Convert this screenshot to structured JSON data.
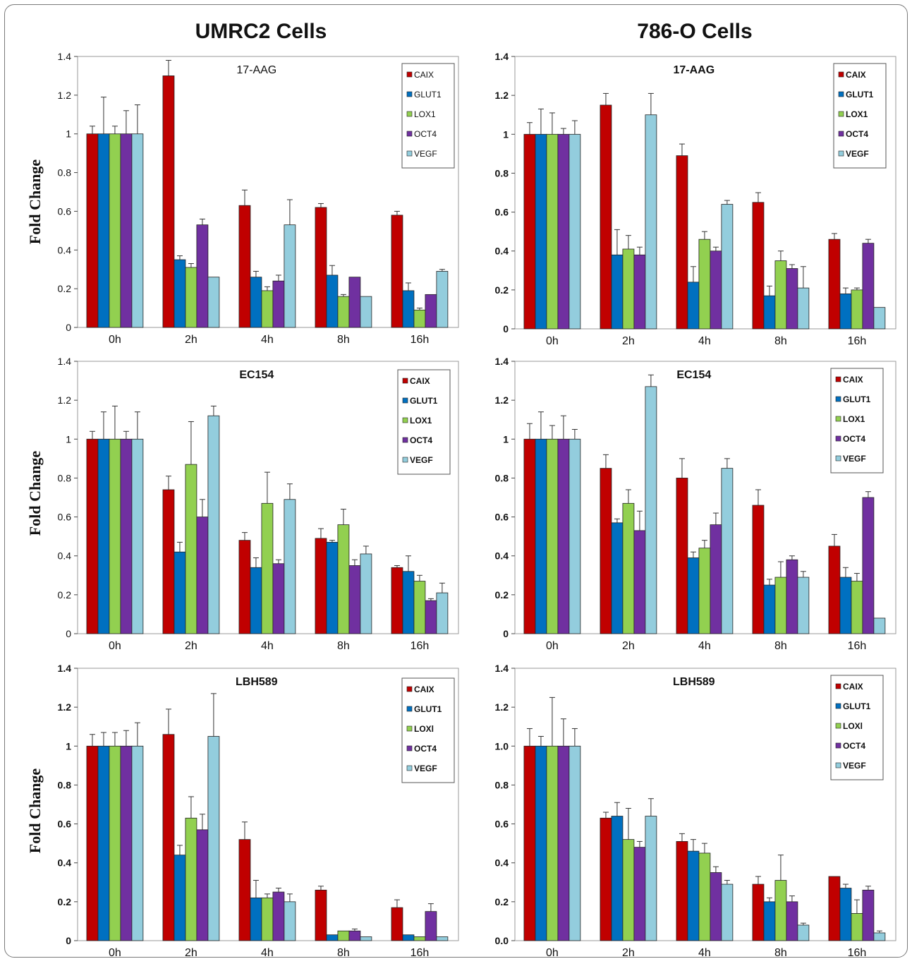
{
  "column_titles": [
    "UMRC2 Cells",
    "786-O Cells"
  ],
  "ylabel": "Fold Change",
  "colors": {
    "CAIX": "#c00000",
    "GLUT1": "#0070c0",
    "LOX1": "#92d050",
    "OCT4": "#7030a0",
    "VEGF": "#93cddd"
  },
  "chart_data": [
    {
      "type": "bar",
      "title": "17-AAG",
      "categories": [
        "0h",
        "2h",
        "4h",
        "8h",
        "16h"
      ],
      "ylim": [
        0,
        1.4
      ],
      "yticks": [
        "0",
        "0.2",
        "0.4",
        "0.6",
        "0.8",
        "1",
        "1.2",
        "1.4"
      ],
      "legend": [
        "CAIX",
        "GLUT1",
        "LOX1",
        "OCT4",
        "VEGF"
      ],
      "legend_position": "top-right",
      "series": [
        {
          "name": "CAIX",
          "values": [
            1.0,
            1.3,
            0.63,
            0.62,
            0.58
          ],
          "errors": [
            0.04,
            0.08,
            0.08,
            0.02,
            0.02
          ]
        },
        {
          "name": "GLUT1",
          "values": [
            1.0,
            0.35,
            0.26,
            0.27,
            0.19
          ],
          "errors": [
            0.19,
            0.02,
            0.03,
            0.05,
            0.04
          ]
        },
        {
          "name": "LOX1",
          "values": [
            1.0,
            0.31,
            0.19,
            0.16,
            0.09
          ],
          "errors": [
            0.04,
            0.02,
            0.02,
            0.01,
            0.01
          ]
        },
        {
          "name": "OCT4",
          "values": [
            1.0,
            0.53,
            0.24,
            0.26,
            0.17
          ],
          "errors": [
            0.12,
            0.03,
            0.03,
            0.0,
            0.0
          ]
        },
        {
          "name": "VEGF",
          "values": [
            1.0,
            0.26,
            0.53,
            0.16,
            0.29
          ],
          "errors": [
            0.15,
            0.0,
            0.13,
            0.0,
            0.01
          ]
        }
      ]
    },
    {
      "type": "bar",
      "title": "17-AAG",
      "categories": [
        "0h",
        "2h",
        "4h",
        "8h",
        "16h"
      ],
      "ylim": [
        0,
        1.4
      ],
      "yticks": [
        "0",
        "0.2",
        "0.4",
        "0.6",
        "0.8",
        "1",
        "1.2",
        "1.4"
      ],
      "legend": [
        "CAIX",
        "GLUT1",
        "LOX1",
        "OCT4",
        "VEGF"
      ],
      "legend_position": "top-right",
      "series": [
        {
          "name": "CAIX",
          "values": [
            1.0,
            1.15,
            0.89,
            0.65,
            0.46
          ],
          "errors": [
            0.06,
            0.06,
            0.06,
            0.05,
            0.03
          ]
        },
        {
          "name": "GLUT1",
          "values": [
            1.0,
            0.38,
            0.24,
            0.17,
            0.18
          ],
          "errors": [
            0.13,
            0.13,
            0.08,
            0.05,
            0.03
          ]
        },
        {
          "name": "LOX1",
          "values": [
            1.0,
            0.41,
            0.46,
            0.35,
            0.2
          ],
          "errors": [
            0.11,
            0.07,
            0.04,
            0.05,
            0.01
          ]
        },
        {
          "name": "OCT4",
          "values": [
            1.0,
            0.38,
            0.4,
            0.31,
            0.44
          ],
          "errors": [
            0.03,
            0.04,
            0.02,
            0.02,
            0.02
          ]
        },
        {
          "name": "VEGF",
          "values": [
            1.0,
            1.1,
            0.64,
            0.21,
            0.11
          ],
          "errors": [
            0.07,
            0.11,
            0.02,
            0.11,
            0.0
          ]
        }
      ]
    },
    {
      "type": "bar",
      "title": "EC154",
      "categories": [
        "0h",
        "2h",
        "4h",
        "8h",
        "16h"
      ],
      "ylim": [
        0,
        1.4
      ],
      "yticks": [
        "0",
        "0.2",
        "0.4",
        "0.6",
        "0.8",
        "1",
        "1.2",
        "1.4"
      ],
      "legend": [
        "CAIX",
        "GLUT1",
        "LOX1",
        "OCT4",
        "VEGF"
      ],
      "legend_position": "top-right",
      "series": [
        {
          "name": "CAIX",
          "values": [
            1.0,
            0.74,
            0.48,
            0.49,
            0.34
          ],
          "errors": [
            0.04,
            0.07,
            0.04,
            0.05,
            0.01
          ]
        },
        {
          "name": "GLUT1",
          "values": [
            1.0,
            0.42,
            0.34,
            0.47,
            0.32
          ],
          "errors": [
            0.14,
            0.05,
            0.05,
            0.01,
            0.08
          ]
        },
        {
          "name": "LOX1",
          "values": [
            1.0,
            0.87,
            0.67,
            0.56,
            0.27
          ],
          "errors": [
            0.17,
            0.22,
            0.16,
            0.08,
            0.03
          ]
        },
        {
          "name": "OCT4",
          "values": [
            1.0,
            0.6,
            0.36,
            0.35,
            0.17
          ],
          "errors": [
            0.04,
            0.09,
            0.02,
            0.03,
            0.01
          ]
        },
        {
          "name": "VEGF",
          "values": [
            1.0,
            1.12,
            0.69,
            0.41,
            0.21
          ],
          "errors": [
            0.14,
            0.05,
            0.08,
            0.04,
            0.05
          ]
        }
      ]
    },
    {
      "type": "bar",
      "title": "EC154",
      "categories": [
        "0h",
        "2h",
        "4h",
        "8h",
        "16h"
      ],
      "ylim": [
        0,
        1.4
      ],
      "yticks": [
        "0",
        "0.2",
        "0.4",
        "0.6",
        "0.8",
        "1",
        "1.2",
        "1.4"
      ],
      "legend": [
        "CAIX",
        "GLUT1",
        "LOX1",
        "OCT4",
        "VEGF"
      ],
      "legend_position": "top-right",
      "series": [
        {
          "name": "CAIX",
          "values": [
            1.0,
            0.85,
            0.8,
            0.66,
            0.45
          ],
          "errors": [
            0.08,
            0.07,
            0.1,
            0.08,
            0.06
          ]
        },
        {
          "name": "GLUT1",
          "values": [
            1.0,
            0.57,
            0.39,
            0.25,
            0.29
          ],
          "errors": [
            0.14,
            0.02,
            0.03,
            0.03,
            0.05
          ]
        },
        {
          "name": "LOX1",
          "values": [
            1.0,
            0.67,
            0.44,
            0.29,
            0.27
          ],
          "errors": [
            0.07,
            0.07,
            0.04,
            0.08,
            0.04
          ]
        },
        {
          "name": "OCT4",
          "values": [
            1.0,
            0.53,
            0.56,
            0.38,
            0.7
          ],
          "errors": [
            0.12,
            0.1,
            0.06,
            0.02,
            0.03
          ]
        },
        {
          "name": "VEGF",
          "values": [
            1.0,
            1.27,
            0.85,
            0.29,
            0.08
          ],
          "errors": [
            0.05,
            0.06,
            0.05,
            0.03,
            0.0
          ]
        }
      ]
    },
    {
      "type": "bar",
      "title": "LBH589",
      "categories": [
        "0h",
        "2h",
        "4h",
        "8h",
        "16h"
      ],
      "ylim": [
        0,
        1.4
      ],
      "yticks": [
        "0",
        "0.2",
        "0.4",
        "0.6",
        "0.8",
        "1",
        "1.2",
        "1.4"
      ],
      "legend": [
        "CAIX",
        "GLUT1",
        "LOXl",
        "OCT4",
        "VEGF"
      ],
      "legend_position": "top-right",
      "series": [
        {
          "name": "CAIX",
          "values": [
            1.0,
            1.06,
            0.52,
            0.26,
            0.17
          ],
          "errors": [
            0.06,
            0.13,
            0.09,
            0.02,
            0.04
          ]
        },
        {
          "name": "GLUT1",
          "values": [
            1.0,
            0.44,
            0.22,
            0.03,
            0.03
          ],
          "errors": [
            0.07,
            0.05,
            0.09,
            0.0,
            0.0
          ]
        },
        {
          "name": "LOXl",
          "values": [
            1.0,
            0.63,
            0.22,
            0.05,
            0.02
          ],
          "errors": [
            0.07,
            0.11,
            0.02,
            0.0,
            0.0
          ]
        },
        {
          "name": "OCT4",
          "values": [
            1.0,
            0.57,
            0.25,
            0.05,
            0.15
          ],
          "errors": [
            0.08,
            0.08,
            0.02,
            0.01,
            0.04
          ]
        },
        {
          "name": "VEGF",
          "values": [
            1.0,
            1.05,
            0.2,
            0.02,
            0.02
          ],
          "errors": [
            0.12,
            0.22,
            0.04,
            0.0,
            0.0
          ]
        }
      ]
    },
    {
      "type": "bar",
      "title": "LBH589",
      "categories": [
        "0h",
        "2h",
        "4h",
        "8h",
        "16h"
      ],
      "ylim": [
        0,
        1.4
      ],
      "yticks": [
        "0.0",
        "0.2",
        "0.4",
        "0.6",
        "0.8",
        "1.0",
        "1.2",
        "1.4"
      ],
      "legend": [
        "CAIX",
        "GLUT1",
        "LOXl",
        "OCT4",
        "VEGF"
      ],
      "legend_position": "top-right",
      "series": [
        {
          "name": "CAIX",
          "values": [
            1.0,
            0.63,
            0.51,
            0.29,
            0.33
          ],
          "errors": [
            0.09,
            0.03,
            0.04,
            0.04,
            0.0
          ]
        },
        {
          "name": "GLUT1",
          "values": [
            1.0,
            0.64,
            0.46,
            0.2,
            0.27
          ],
          "errors": [
            0.05,
            0.07,
            0.06,
            0.02,
            0.02
          ]
        },
        {
          "name": "LOXl",
          "values": [
            1.0,
            0.52,
            0.45,
            0.31,
            0.14
          ],
          "errors": [
            0.25,
            0.16,
            0.05,
            0.13,
            0.07
          ]
        },
        {
          "name": "OCT4",
          "values": [
            1.0,
            0.48,
            0.35,
            0.2,
            0.26
          ],
          "errors": [
            0.14,
            0.03,
            0.03,
            0.03,
            0.02
          ]
        },
        {
          "name": "VEGF",
          "values": [
            1.0,
            0.64,
            0.29,
            0.08,
            0.04
          ],
          "errors": [
            0.09,
            0.09,
            0.02,
            0.01,
            0.01
          ]
        }
      ]
    }
  ]
}
